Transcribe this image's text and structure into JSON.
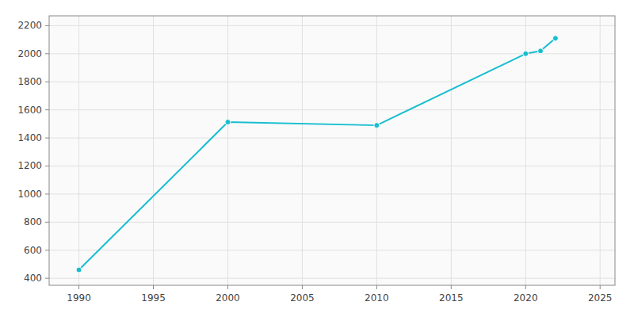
{
  "chart_data": {
    "type": "line",
    "x": [
      1990,
      2000,
      2010,
      2020,
      2021,
      2022
    ],
    "values": [
      460,
      1513,
      1490,
      2000,
      2020,
      2110
    ],
    "color": "#17BECF",
    "marker": "circle",
    "xlim": [
      1988,
      2026
    ],
    "ylim": [
      350,
      2270
    ],
    "xticks": [
      1990,
      1995,
      2000,
      2005,
      2010,
      2015,
      2020,
      2025
    ],
    "yticks": [
      400,
      600,
      800,
      1000,
      1200,
      1400,
      1600,
      1800,
      2000,
      2200
    ],
    "grid": true
  }
}
